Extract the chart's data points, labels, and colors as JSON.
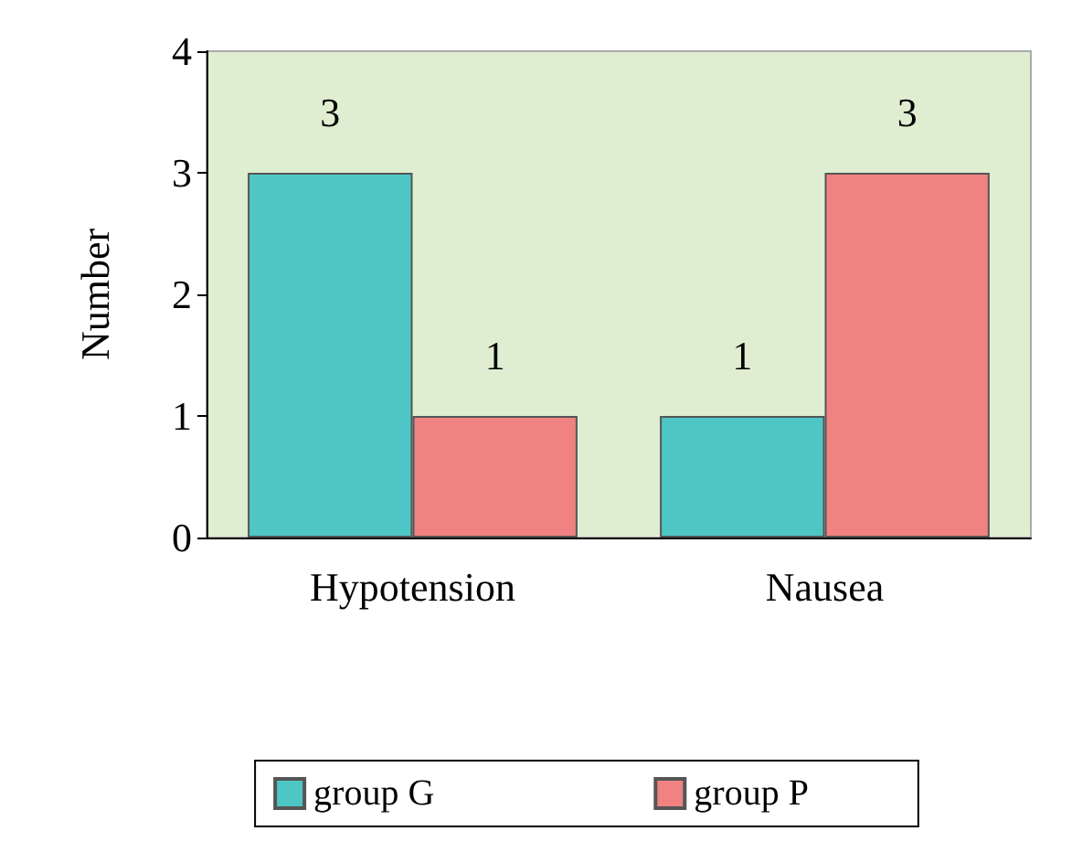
{
  "chart_data": {
    "type": "bar",
    "ylabel": "Number",
    "categories": [
      "Hypotension",
      "Nausea"
    ],
    "series": [
      {
        "name": "group G",
        "color": "#4fc6c6",
        "values": [
          3,
          1
        ]
      },
      {
        "name": "group P",
        "color": "#f08282",
        "values": [
          1,
          3
        ]
      }
    ],
    "ylim": [
      0,
      4
    ],
    "yticks": [
      0,
      1,
      2,
      3,
      4
    ],
    "grid": false,
    "legend": "bottom",
    "data_labels": true
  }
}
